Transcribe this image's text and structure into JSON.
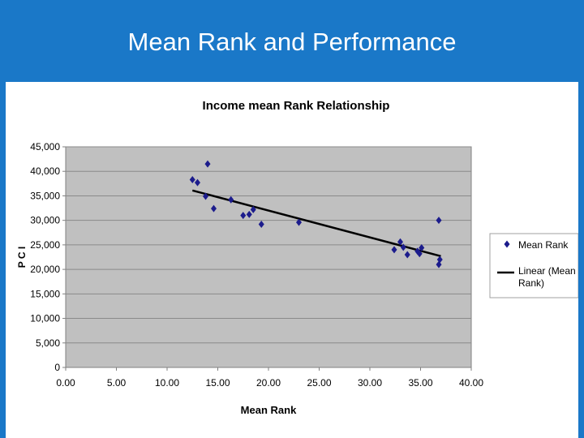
{
  "slide": {
    "title": "Mean Rank and Performance"
  },
  "chart_data": {
    "type": "scatter",
    "title": "Income mean Rank Relationship",
    "xlabel": "Mean Rank",
    "ylabel": "P C I",
    "xlim": [
      0,
      40
    ],
    "ylim": [
      0,
      45000
    ],
    "x_ticks": [
      0,
      5,
      10,
      15,
      20,
      25,
      30,
      35,
      40
    ],
    "x_tick_labels": [
      "0.00",
      "5.00",
      "10.00",
      "15.00",
      "20.00",
      "25.00",
      "30.00",
      "35.00",
      "40.00"
    ],
    "y_ticks": [
      0,
      5000,
      10000,
      15000,
      20000,
      25000,
      30000,
      35000,
      40000,
      45000
    ],
    "y_tick_labels": [
      "0",
      "5,000",
      "10,000",
      "15,000",
      "20,000",
      "25,000",
      "30,000",
      "35,000",
      "40,000",
      "45,000"
    ],
    "grid": true,
    "legend_position": "right",
    "plot_background": "#c0c0c0",
    "marker_color": "#1c1c8c",
    "trend_color": "#000000",
    "series": [
      {
        "name": "Mean Rank",
        "marker": "diamond",
        "points": [
          [
            12.5,
            38300
          ],
          [
            13.0,
            37700
          ],
          [
            13.8,
            34900
          ],
          [
            14.0,
            41500
          ],
          [
            14.6,
            32400
          ],
          [
            16.3,
            34200
          ],
          [
            17.5,
            31000
          ],
          [
            18.1,
            31200
          ],
          [
            18.5,
            32200
          ],
          [
            19.3,
            29200
          ],
          [
            23.0,
            29600
          ],
          [
            32.4,
            24000
          ],
          [
            33.0,
            25600
          ],
          [
            33.3,
            24500
          ],
          [
            33.7,
            23000
          ],
          [
            34.7,
            23700
          ],
          [
            34.9,
            23200
          ],
          [
            35.1,
            24400
          ],
          [
            36.8,
            30000
          ],
          [
            36.9,
            22000
          ],
          [
            36.8,
            21000
          ]
        ]
      },
      {
        "name": "Linear (Mean Rank)",
        "type": "line",
        "points": [
          [
            12.5,
            36100
          ],
          [
            37.0,
            22700
          ]
        ]
      }
    ]
  }
}
